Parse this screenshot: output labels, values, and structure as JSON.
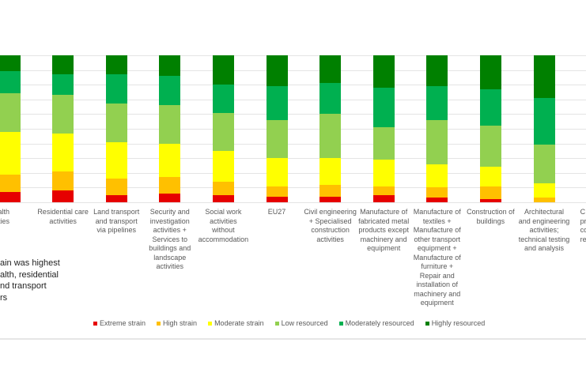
{
  "chart_data": {
    "type": "bar",
    "stacked": true,
    "ylim": [
      0,
      100
    ],
    "grid": true,
    "legend_placement": "bottom",
    "categories": [
      [
        "an health",
        "ctivities"
      ],
      [
        "Residential care",
        "activities"
      ],
      [
        "Land transport",
        "and transport",
        "via pipelines"
      ],
      [
        "Security and",
        "investigation",
        "activities +",
        "Services to",
        "buildings and",
        "landscape",
        "activities"
      ],
      [
        "Social work",
        "activities",
        "without",
        "accommodation"
      ],
      [
        "EU27"
      ],
      [
        "Civil engineering",
        "+ Specialised",
        "construction",
        "activities"
      ],
      [
        "Manufacture of",
        "fabricated metal",
        "products except",
        "machinery and",
        "equipment"
      ],
      [
        "Manufacture of",
        "textiles +",
        "Manufacture of",
        "other transport",
        "equipment +",
        "Manufacture of",
        "furniture +",
        "Repair and",
        "installation of",
        "machinery and",
        "equipment"
      ],
      [
        "Construction of",
        "buildings"
      ],
      [
        "Architectural",
        "and engineering",
        "activities;",
        "technical testing",
        "and analysis"
      ],
      [
        "C",
        "pro",
        "cons",
        "rela"
      ]
    ],
    "series": [
      {
        "name": "Extreme strain",
        "color": "#e60000",
        "values": [
          7,
          8,
          5,
          6,
          5,
          4,
          4,
          5,
          3,
          2,
          0,
          null
        ]
      },
      {
        "name": "High strain",
        "color": "#ffc000",
        "values": [
          12,
          13,
          11,
          11,
          9,
          7,
          8,
          6,
          7,
          9,
          3,
          null
        ]
      },
      {
        "name": "Moderate strain",
        "color": "#ffff00",
        "values": [
          29,
          26,
          25,
          23,
          21,
          19,
          18,
          18,
          16,
          13,
          10,
          null
        ]
      },
      {
        "name": "Low resourced",
        "color": "#92d050",
        "values": [
          26,
          26,
          26,
          26,
          26,
          26,
          30,
          22,
          30,
          28,
          26,
          null
        ]
      },
      {
        "name": "Moderately resourced",
        "color": "#00b050",
        "values": [
          15,
          14,
          20,
          20,
          19,
          23,
          21,
          27,
          23,
          25,
          32,
          null
        ]
      },
      {
        "name": "Highly resourced",
        "color": "#008000",
        "values": [
          11,
          13,
          13,
          14,
          20,
          21,
          19,
          22,
          21,
          23,
          29,
          null
        ]
      }
    ]
  },
  "annotation": [
    "ain was highest",
    "alth, residential",
    "nd transport",
    "rs"
  ]
}
